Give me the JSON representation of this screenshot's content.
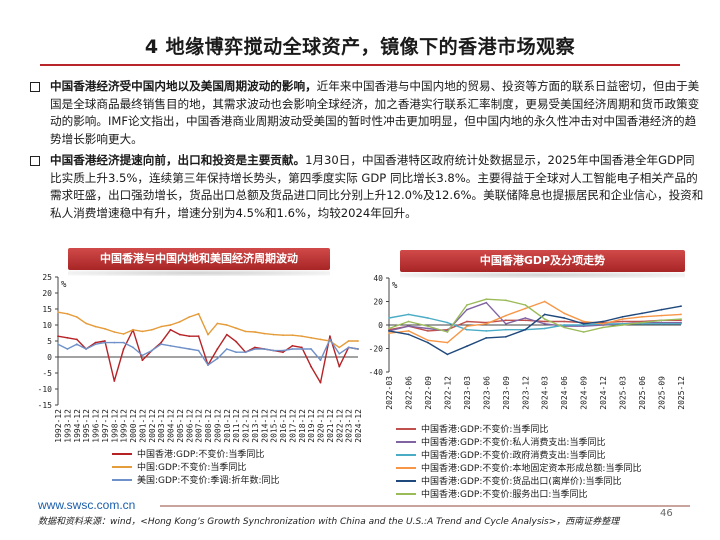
{
  "title": "4 地缘博弈搅动全球资产，镜像下的香港市场观察",
  "bullets": [
    {
      "lead": "中国香港经济受中国内地以及美国周期波动的影响，",
      "body": "近年来中国香港与中国内地的贸易、投资等方面的联系日益密切，但由于美国是全球商品最终销售目的地，其需求波动也会影响全球经济，加之香港实行联系汇率制度，更易受美国经济周期和货币政策变动的影响。IMF论文指出，中国香港商业周期波动受美国的暂时性冲击更加明显，但中国内地的永久性冲击对中国香港经济的趋势增长影响更大。"
    },
    {
      "lead": "中国香港经济提速向前，出口和投资是主要贡献。",
      "body": "1月30日，中国香港特区政府统计处数据显示，2025年中国香港全年GDP同比实质上升3.5%，连续第三年保持增长势头，第四季度实际  GDP 同比增长3.8%。主要得益于全球对人工智能电子相关产品的需求旺盛，出口强劲增长，货品出口总额及货品进口同比分别上升12.0%及12.6%。美联储降息也提振居民和企业信心，投资和私人消费增速稳中有升，增速分别为4.5%和1.6%，均较2024年回升。"
    }
  ],
  "left_panel": {
    "title": "中国香港与中国内地和美国经济周期波动",
    "unit": "%"
  },
  "right_panel": {
    "title": "中国香港GDP及分项走势",
    "unit": "%"
  },
  "chart_data": [
    {
      "type": "line",
      "ylim": [
        -15,
        25
      ],
      "yticks": [
        25,
        20,
        15,
        10,
        5,
        0,
        -5,
        -10,
        -15
      ],
      "categories": [
        "1992-12",
        "1993-12",
        "1994-12",
        "1995-12",
        "1996-12",
        "1997-12",
        "1998-12",
        "1999-12",
        "2000-12",
        "2001-12",
        "2002-12",
        "2003-12",
        "2004-12",
        "2005-12",
        "2006-12",
        "2007-12",
        "2008-12",
        "2009-12",
        "2010-12",
        "2011-12",
        "2012-12",
        "2013-12",
        "2014-12",
        "2015-12",
        "2016-12",
        "2017-12",
        "2018-12",
        "2019-12",
        "2020-12",
        "2021-12",
        "2022-12",
        "2023-12",
        "2024-12"
      ],
      "series": [
        {
          "name": "中国香港:GDP:不变价:当季同比",
          "color": "#b62327",
          "values": [
            6.5,
            6.0,
            5.5,
            2.5,
            4.5,
            5.0,
            -7.5,
            2.5,
            8.5,
            -1.0,
            2.0,
            4.5,
            8.5,
            7.0,
            6.5,
            6.5,
            -2.5,
            2.5,
            7.0,
            4.8,
            1.5,
            3.0,
            2.5,
            2.0,
            1.5,
            3.5,
            3.0,
            -3.0,
            -8.0,
            6.5,
            -3.0,
            3.0,
            2.5
          ]
        },
        {
          "name": "中国:GDP:不变价:当季同比",
          "color": "#e59c3a",
          "values": [
            14.0,
            13.5,
            12.5,
            10.5,
            9.5,
            8.8,
            7.8,
            7.2,
            8.5,
            8.0,
            8.5,
            9.5,
            10.0,
            11.0,
            12.5,
            13.5,
            7.0,
            10.5,
            10.0,
            9.0,
            8.0,
            7.8,
            7.3,
            7.0,
            6.8,
            6.8,
            6.5,
            6.0,
            5.5,
            5.0,
            3.0,
            5.0,
            5.0
          ]
        },
        {
          "name": "美国:GDP:不变价:季调:折年数:同比",
          "color": "#6f90c8",
          "values": [
            4.0,
            2.5,
            4.0,
            2.5,
            4.0,
            4.5,
            4.5,
            4.5,
            3.0,
            0.5,
            2.0,
            4.0,
            3.5,
            3.0,
            2.5,
            2.0,
            -2.5,
            -0.5,
            2.5,
            1.5,
            1.5,
            2.5,
            2.5,
            2.0,
            2.0,
            2.5,
            2.5,
            2.5,
            -1.0,
            5.5,
            1.0,
            3.0,
            2.5
          ]
        }
      ]
    },
    {
      "type": "line",
      "ylim": [
        -40,
        40
      ],
      "yticks": [
        40,
        20,
        0,
        -20,
        -40
      ],
      "categories": [
        "2022-03",
        "2022-06",
        "2022-09",
        "2022-12",
        "2023-03",
        "2023-06",
        "2023-09",
        "2023-12",
        "2024-03",
        "2024-06",
        "2024-09",
        "2024-12",
        "2025-03",
        "2025-06",
        "2025-09",
        "2025-12"
      ],
      "series": [
        {
          "name": "中国香港:GDP:不变价:当季同比",
          "color": "#c0504d",
          "values": [
            -4,
            -1,
            -5,
            -4,
            3,
            2,
            4,
            4,
            3,
            3,
            2,
            2,
            3,
            3,
            4,
            4
          ]
        },
        {
          "name": "中国香港:GDP:不变价:私人消费支出:当季同比",
          "color": "#8064a2",
          "values": [
            -5,
            -1,
            -3,
            -5,
            13,
            19,
            1,
            6,
            1,
            -1,
            -1,
            0,
            1,
            2,
            2,
            2
          ]
        },
        {
          "name": "中国香港:GDP:不变价:政府消费支出:当季同比",
          "color": "#4bacc6",
          "values": [
            6,
            9,
            6,
            2,
            -4,
            -5,
            -4,
            -4,
            -3,
            0,
            0,
            1,
            1,
            1,
            1,
            1
          ]
        },
        {
          "name": "中国香港:GDP:不变价:本地固定资本形成总额:当季同比",
          "color": "#f79646",
          "values": [
            -7,
            -5,
            -13,
            -15,
            -1,
            1,
            8,
            14,
            20,
            10,
            3,
            1,
            5,
            7,
            8,
            9
          ]
        },
        {
          "name": "中国香港:GDP:不变价:货品出口(离岸价):当季同比",
          "color": "#1f497d",
          "values": [
            -5,
            -8,
            -15,
            -25,
            -18,
            -11,
            -10,
            -4,
            9,
            6,
            1,
            3,
            7,
            10,
            13,
            16
          ]
        },
        {
          "name": "中国香港:GDP:不变价:服务出口:当季同比",
          "color": "#9bbb59",
          "values": [
            -3,
            3,
            -1,
            -6,
            17,
            22,
            21,
            17,
            5,
            -2,
            -6,
            -2,
            0,
            2,
            4,
            5
          ]
        }
      ]
    }
  ],
  "footer": {
    "logo": "www.swsc.com.cn",
    "source": "数据和资料来源：wind，<Hong Kong’s Growth Synchronization with China and the U.S.:A Trend and Cycle Analysis>，西南证券整理",
    "page": "46"
  }
}
